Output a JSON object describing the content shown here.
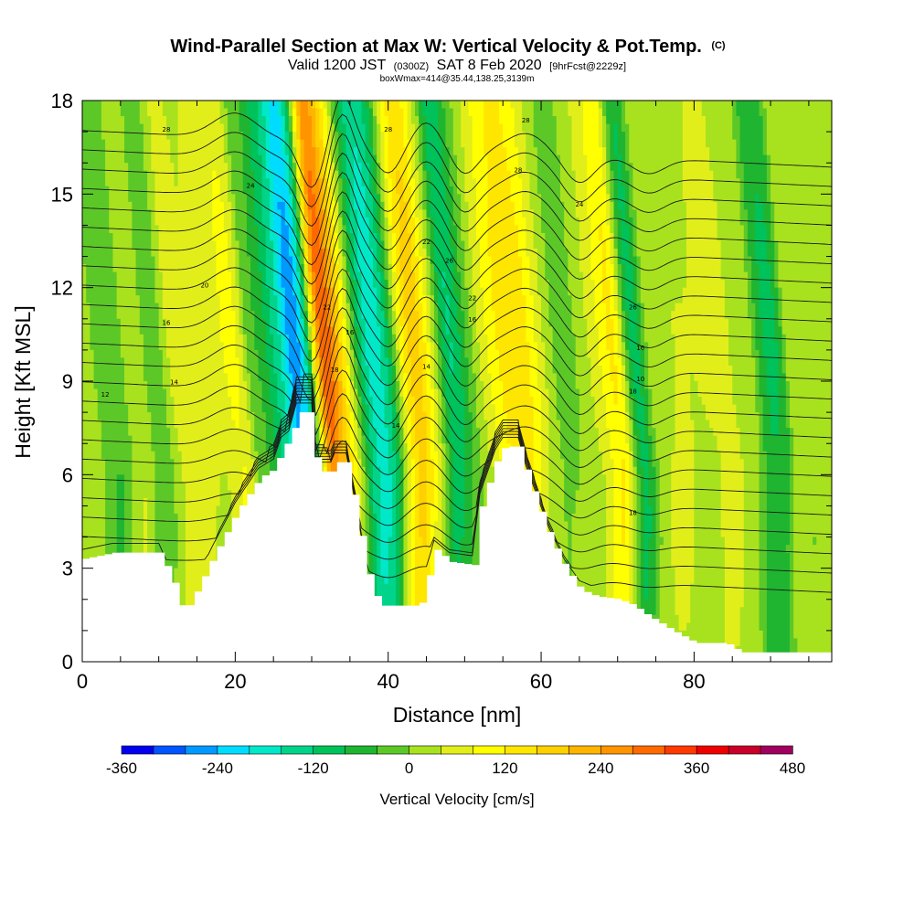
{
  "chart_data": {
    "type": "heatmap",
    "title": "Wind-Parallel Section at Max W: Vertical Velocity & Pot.Temp.",
    "title_tag": "(C)",
    "subtitle": {
      "valid": "Valid 1200 JST",
      "utc": "(0300Z)",
      "date": "SAT 8 Feb 2020",
      "forecast": "[9hrFcst@2229z]"
    },
    "info": "boxWmax=414@35.44,138.25,3139m",
    "xlabel": "Distance [nm]",
    "ylabel": "Height [Kft MSL]",
    "xlim": [
      0,
      98
    ],
    "ylim": [
      0,
      18
    ],
    "xticks": [
      0,
      20,
      40,
      60,
      80
    ],
    "yticks": [
      0,
      3,
      6,
      9,
      12,
      15,
      18
    ],
    "colorbar": {
      "title": "Vertical Velocity [cm/s]",
      "min": -360,
      "max": 480,
      "step": 40,
      "tick_labels": [
        "-360",
        "-240",
        "-120",
        "0",
        "120",
        "240",
        "360",
        "480"
      ],
      "colors": [
        "#0000ee",
        "#0055ff",
        "#0099ff",
        "#00dcff",
        "#00e8c8",
        "#00d48a",
        "#00c25a",
        "#1fb530",
        "#5cc828",
        "#a8e21e",
        "#e2ee1a",
        "#ffff00",
        "#ffe600",
        "#ffd000",
        "#ffb400",
        "#ff9400",
        "#ff6a00",
        "#ff3a00",
        "#ee0000",
        "#c8002a",
        "#a00060"
      ]
    },
    "isentrope_labels": [
      "28",
      "24",
      "20",
      "16",
      "14",
      "12",
      "18",
      "26",
      "22",
      "10"
    ],
    "terrain_kft": [
      [
        0,
        3.3
      ],
      [
        4,
        3.5
      ],
      [
        10,
        3.5
      ],
      [
        12,
        2.4
      ],
      [
        13,
        1.6
      ],
      [
        14,
        1.9
      ],
      [
        17,
        3.4
      ],
      [
        20,
        4.8
      ],
      [
        23,
        5.9
      ],
      [
        25,
        6.2
      ],
      [
        26,
        6.9
      ],
      [
        27,
        7.1
      ],
      [
        28,
        8.0
      ],
      [
        30,
        8.0
      ],
      [
        30.5,
        6.1
      ],
      [
        32.5,
        6.1
      ],
      [
        33,
        6.4
      ],
      [
        34.5,
        6.4
      ],
      [
        36,
        4.4
      ],
      [
        37,
        3.0
      ],
      [
        38,
        2.2
      ],
      [
        39,
        1.8
      ],
      [
        44,
        1.8
      ],
      [
        46,
        3.6
      ],
      [
        48,
        3.2
      ],
      [
        51,
        3.1
      ],
      [
        52,
        5.1
      ],
      [
        54,
        6.5
      ],
      [
        55,
        6.9
      ],
      [
        57,
        6.9
      ],
      [
        58,
        6.0
      ],
      [
        61,
        4.0
      ],
      [
        63,
        3.0
      ],
      [
        65,
        2.3
      ],
      [
        67,
        2.1
      ],
      [
        70,
        2.0
      ],
      [
        72,
        1.8
      ],
      [
        73,
        1.6
      ],
      [
        77,
        1.0
      ],
      [
        80,
        0.6
      ],
      [
        84,
        0.6
      ],
      [
        86,
        0.3
      ],
      [
        98,
        0.3
      ]
    ],
    "vertical_velocity_columns": [
      {
        "x": 1,
        "w": 10
      },
      {
        "x": 5,
        "w": -30
      },
      {
        "x": 8,
        "w": 30
      },
      {
        "x": 11,
        "w": -50
      },
      {
        "x": 13,
        "w": 80
      },
      {
        "x": 15,
        "w": 40
      },
      {
        "x": 18,
        "w": 55
      },
      {
        "x": 21,
        "w": 95
      },
      {
        "x": 24,
        "w": -40
      },
      {
        "x": 27,
        "w": -120
      },
      {
        "x": 29.2,
        "w": -330
      },
      {
        "x": 30.6,
        "w": -180
      },
      {
        "x": 32.6,
        "w": 410
      },
      {
        "x": 34.5,
        "w": 240
      },
      {
        "x": 36.2,
        "w": 100
      },
      {
        "x": 37.6,
        "w": -170
      },
      {
        "x": 39.6,
        "w": -210
      },
      {
        "x": 41.5,
        "w": -110
      },
      {
        "x": 43.4,
        "w": 150
      },
      {
        "x": 45.3,
        "w": 230
      },
      {
        "x": 47,
        "w": 20
      },
      {
        "x": 49.6,
        "w": -150
      },
      {
        "x": 51.6,
        "w": -40
      },
      {
        "x": 53.5,
        "w": 60
      },
      {
        "x": 55.6,
        "w": 120
      },
      {
        "x": 57.5,
        "w": 170
      },
      {
        "x": 59.5,
        "w": 130
      },
      {
        "x": 61.8,
        "w": 40
      },
      {
        "x": 64,
        "w": -40
      },
      {
        "x": 66.3,
        "w": 10
      },
      {
        "x": 68.8,
        "w": 70
      },
      {
        "x": 71,
        "w": 160
      },
      {
        "x": 73.3,
        "w": -130
      },
      {
        "x": 76,
        "w": 40
      },
      {
        "x": 80,
        "w": 40
      },
      {
        "x": 84,
        "w": 50
      },
      {
        "x": 88,
        "w": 30
      },
      {
        "x": 91,
        "w": -90
      },
      {
        "x": 95,
        "w": 30
      }
    ]
  }
}
